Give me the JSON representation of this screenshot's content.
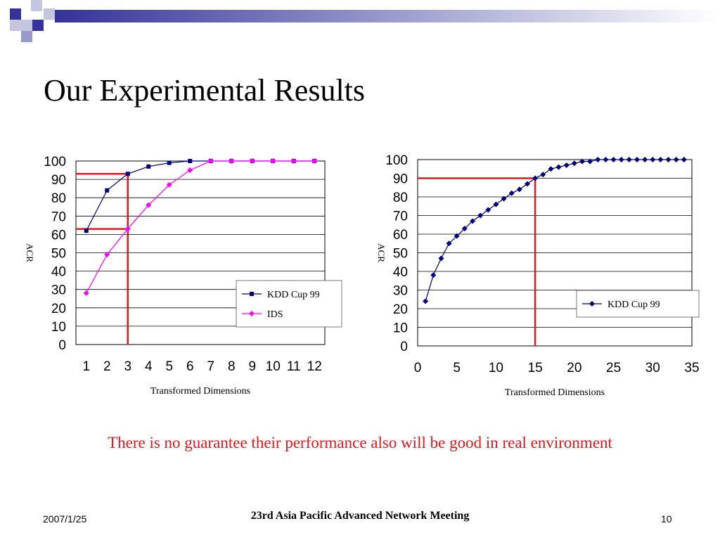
{
  "slide": {
    "title": "Our Experimental Results",
    "subtitle": "There is no guarantee their performance also will be good in real environment",
    "footer_date": "2007/1/25",
    "footer_center": "23rd Asia Pacific Advanced Network Meeting",
    "page_number": "10",
    "colors": {
      "decoration": "#333399",
      "decoration_light": "#9999cc",
      "subtitle": "#e8161b",
      "highlight": "#e8161b"
    }
  },
  "chart_data": [
    {
      "type": "line",
      "xlabel": "Transformed Dimensions",
      "ylabel": "ACR",
      "x": [
        1,
        2,
        3,
        4,
        5,
        6,
        7,
        8,
        9,
        10,
        11,
        12
      ],
      "xticks": [
        "1",
        "2",
        "3",
        "4",
        "5",
        "6",
        "7",
        "8",
        "9",
        "10",
        "11",
        "12"
      ],
      "yticks": [
        "0",
        "10",
        "20",
        "30",
        "40",
        "50",
        "60",
        "70",
        "80",
        "90",
        "100"
      ],
      "ylim": [
        0,
        100
      ],
      "grid": "horizontal",
      "legend_position": "bottom-right",
      "series": [
        {
          "name": "KDD Cup 99",
          "color": "#000080",
          "marker": "square",
          "values": [
            62,
            84,
            93,
            97,
            99,
            100,
            100,
            100,
            100,
            100,
            100,
            100
          ]
        },
        {
          "name": "IDS",
          "color": "#ff00ff",
          "marker": "diamond",
          "values": [
            28,
            49,
            63,
            76,
            87,
            95,
            100,
            100,
            100,
            100,
            100,
            100
          ]
        }
      ],
      "highlight_lines": [
        {
          "x": 3,
          "y": 93
        },
        {
          "x": 3,
          "y": 63
        }
      ]
    },
    {
      "type": "line",
      "xlabel": "Transformed Dimensions",
      "ylabel": "ACR",
      "x": [
        1,
        2,
        3,
        4,
        5,
        6,
        7,
        8,
        9,
        10,
        11,
        12,
        13,
        14,
        15,
        16,
        17,
        18,
        19,
        20,
        21,
        22,
        23,
        24,
        25,
        26,
        27,
        28,
        29,
        30,
        31,
        32,
        33,
        34
      ],
      "xticks": [
        "0",
        "5",
        "10",
        "15",
        "20",
        "25",
        "30",
        "35"
      ],
      "xlim": [
        0,
        35
      ],
      "yticks": [
        "0",
        "10",
        "20",
        "30",
        "40",
        "50",
        "60",
        "70",
        "80",
        "90",
        "100"
      ],
      "ylim": [
        0,
        100
      ],
      "grid": "horizontal",
      "legend_position": "right",
      "series": [
        {
          "name": "KDD Cup 99",
          "color": "#000080",
          "marker": "diamond",
          "values": [
            24,
            38,
            47,
            55,
            59,
            63,
            67,
            70,
            73,
            76,
            79,
            82,
            84,
            87,
            90,
            92,
            95,
            96,
            97,
            98,
            99,
            99,
            100,
            100,
            100,
            100,
            100,
            100,
            100,
            100,
            100,
            100,
            100,
            100
          ]
        }
      ],
      "highlight_lines": [
        {
          "x": 15,
          "y": 90
        }
      ]
    }
  ]
}
